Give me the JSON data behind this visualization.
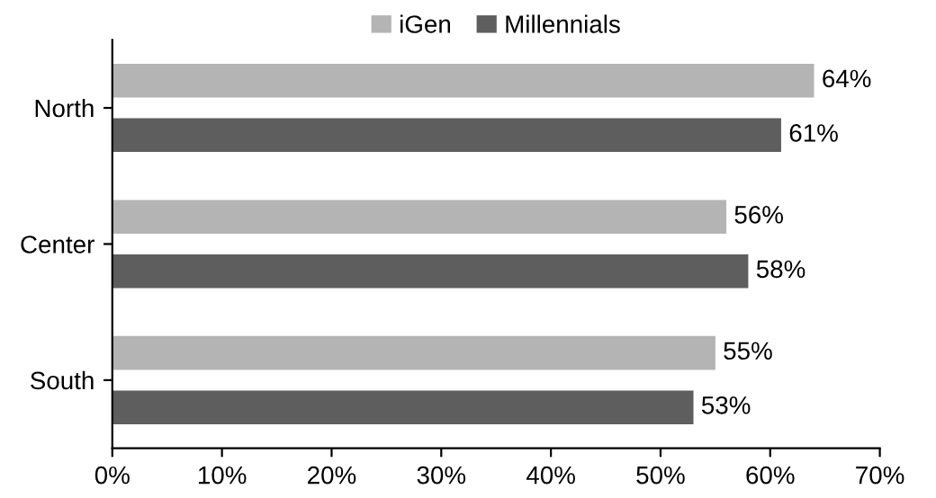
{
  "chart_data": {
    "type": "bar",
    "orientation": "horizontal",
    "categories": [
      "North",
      "Center",
      "South"
    ],
    "series": [
      {
        "name": "iGen",
        "color": "#b4b4b4",
        "values": [
          64,
          56,
          55
        ],
        "value_labels": [
          "64%",
          "56%",
          "55%"
        ]
      },
      {
        "name": "Millennials",
        "color": "#5e5e5e",
        "values": [
          61,
          58,
          53
        ],
        "value_labels": [
          "61%",
          "58%",
          "53%"
        ]
      }
    ],
    "xlim": [
      0,
      70
    ],
    "xticks": [
      {
        "value": 0,
        "label": "0%"
      },
      {
        "value": 10,
        "label": "10%"
      },
      {
        "value": 20,
        "label": "20%"
      },
      {
        "value": 30,
        "label": "30%"
      },
      {
        "value": 40,
        "label": "40%"
      },
      {
        "value": 50,
        "label": "50%"
      },
      {
        "value": 60,
        "label": "60%"
      },
      {
        "value": 70,
        "label": "70%"
      }
    ],
    "legend": "top",
    "grid": false
  }
}
